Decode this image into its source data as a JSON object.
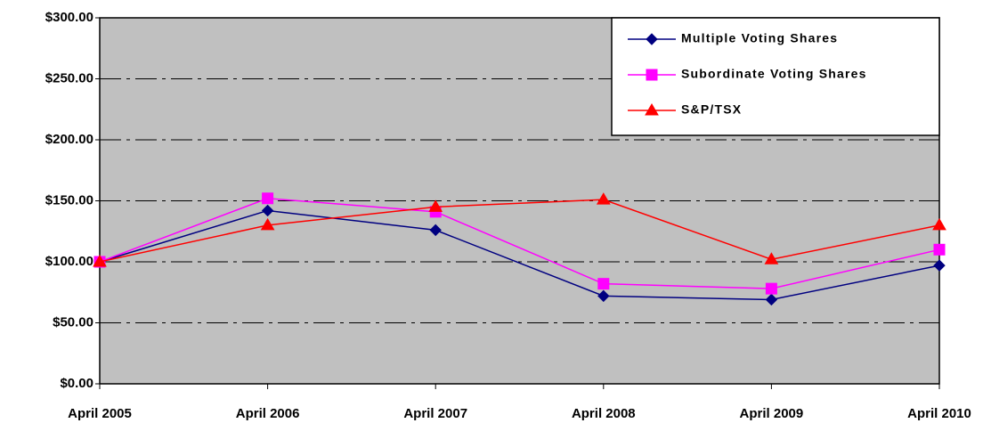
{
  "chart_data": {
    "type": "line",
    "categories": [
      "April 2005",
      "April 2006",
      "April 2007",
      "April 2008",
      "April 2009",
      "April 2010"
    ],
    "series": [
      {
        "name": "Multiple Voting Shares",
        "color": "#000080",
        "marker": "diamond",
        "values": [
          100,
          142,
          126,
          72,
          69,
          97
        ]
      },
      {
        "name": "Subordinate Voting Shares",
        "color": "#ff00ff",
        "marker": "square",
        "values": [
          100,
          152,
          141,
          82,
          78,
          110
        ]
      },
      {
        "name": "S&P/TSX",
        "color": "#ff0000",
        "marker": "triangle",
        "values": [
          100,
          130,
          145,
          151,
          102,
          130
        ]
      }
    ],
    "ylim": [
      0,
      300
    ],
    "yticks": [
      {
        "value": 0,
        "label": "$0.00"
      },
      {
        "value": 50,
        "label": "$50.00"
      },
      {
        "value": 100,
        "label": "$100.00"
      },
      {
        "value": 150,
        "label": "$150.00"
      },
      {
        "value": 200,
        "label": "$200.00"
      },
      {
        "value": 250,
        "label": "$250.00"
      },
      {
        "value": 300,
        "label": "$300.00"
      }
    ],
    "grid": true,
    "legend": "upper right"
  }
}
